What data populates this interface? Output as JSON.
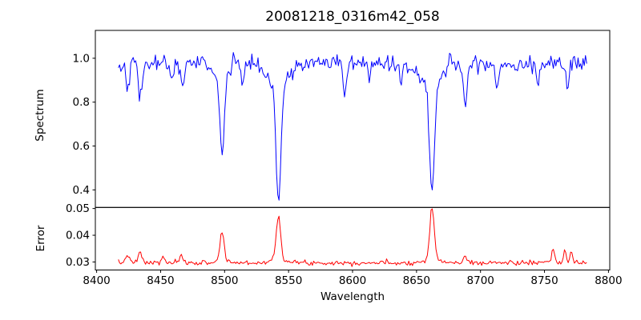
{
  "chart_data": {
    "type": "line",
    "title": "20081218_0316m42_058",
    "xlabel": "Wavelength",
    "xlim": [
      8399,
      8801
    ],
    "xticks": [
      8400,
      8450,
      8500,
      8550,
      8600,
      8650,
      8700,
      8750,
      8800
    ],
    "xtick_labels": [
      "8400",
      "8450",
      "8500",
      "8550",
      "8600",
      "8650",
      "8700",
      "8750",
      "8800"
    ],
    "x_data_range": [
      8417,
      8783
    ],
    "n_points": 380,
    "grid": false,
    "legend": "none",
    "panels": [
      {
        "name": "spectrum",
        "ylabel": "Spectrum",
        "ylim": [
          0.32,
          1.127
        ],
        "yticks": [
          0.4,
          0.6,
          0.8,
          1.0
        ],
        "ytick_labels": [
          "0.4",
          "0.6",
          "0.8",
          "1.0"
        ],
        "line_color": "#0000ff",
        "continuum": 0.975,
        "noise_sigma": 0.019,
        "seed": 42,
        "absorption_lines": [
          {
            "center": 8424.0,
            "depth": 0.1,
            "sigma": 1.2
          },
          {
            "center": 8434.0,
            "depth": 0.165,
            "sigma": 1.4
          },
          {
            "center": 8459.0,
            "depth": 0.07,
            "sigma": 1.0
          },
          {
            "center": 8467.0,
            "depth": 0.1,
            "sigma": 1.2
          },
          {
            "center": 8498.0,
            "depth": 0.36,
            "sigma": 1.7
          },
          {
            "center": 8498.0,
            "depth": 0.07,
            "sigma": 5.0
          },
          {
            "center": 8514.0,
            "depth": 0.1,
            "sigma": 1.1
          },
          {
            "center": 8542.1,
            "depth": 0.52,
            "sigma": 1.9
          },
          {
            "center": 8542.1,
            "depth": 0.12,
            "sigma": 7.0
          },
          {
            "center": 8594.0,
            "depth": 0.13,
            "sigma": 1.2
          },
          {
            "center": 8613.0,
            "depth": 0.08,
            "sigma": 1.0
          },
          {
            "center": 8638.0,
            "depth": 0.1,
            "sigma": 1.1
          },
          {
            "center": 8662.1,
            "depth": 0.47,
            "sigma": 1.9
          },
          {
            "center": 8662.1,
            "depth": 0.12,
            "sigma": 7.0
          },
          {
            "center": 8688.0,
            "depth": 0.19,
            "sigma": 1.5
          },
          {
            "center": 8713.0,
            "depth": 0.11,
            "sigma": 1.2
          },
          {
            "center": 8745.0,
            "depth": 0.09,
            "sigma": 1.0
          },
          {
            "center": 8768.0,
            "depth": 0.1,
            "sigma": 1.1
          },
          {
            "center": 8507.0,
            "depth": -0.1,
            "sigma": 0.6
          },
          {
            "center": 8676.0,
            "depth": -0.085,
            "sigma": 0.6
          }
        ]
      },
      {
        "name": "error",
        "ylabel": "Error",
        "ylim": [
          0.027,
          0.0504
        ],
        "yticks": [
          0.03,
          0.04,
          0.05
        ],
        "ytick_labels": [
          "0.03",
          "0.04",
          "0.05"
        ],
        "line_color": "#ff0000",
        "baseline": 0.0297,
        "noise_sigma": 0.00045,
        "seed": 7,
        "peaks": [
          {
            "center": 8424.0,
            "amplitude": 0.033,
            "sigma": 1.3
          },
          {
            "center": 8434.0,
            "amplitude": 0.0336,
            "sigma": 1.4
          },
          {
            "center": 8452.0,
            "amplitude": 0.0318,
            "sigma": 1.2
          },
          {
            "center": 8466.0,
            "amplitude": 0.0322,
            "sigma": 1.2
          },
          {
            "center": 8498.0,
            "amplitude": 0.0402,
            "sigma": 1.5
          },
          {
            "center": 8498.0,
            "amplitude": 0.0309,
            "sigma": 4.0
          },
          {
            "center": 8542.1,
            "amplitude": 0.0461,
            "sigma": 1.7
          },
          {
            "center": 8542.1,
            "amplitude": 0.0312,
            "sigma": 5.0
          },
          {
            "center": 8662.1,
            "amplitude": 0.0494,
            "sigma": 1.7
          },
          {
            "center": 8662.1,
            "amplitude": 0.0312,
            "sigma": 5.0
          },
          {
            "center": 8688.0,
            "amplitude": 0.0318,
            "sigma": 1.5
          },
          {
            "center": 8757.0,
            "amplitude": 0.0342,
            "sigma": 1.2
          },
          {
            "center": 8766.0,
            "amplitude": 0.0347,
            "sigma": 1.0
          },
          {
            "center": 8771.0,
            "amplitude": 0.0338,
            "sigma": 0.9
          }
        ]
      }
    ]
  }
}
